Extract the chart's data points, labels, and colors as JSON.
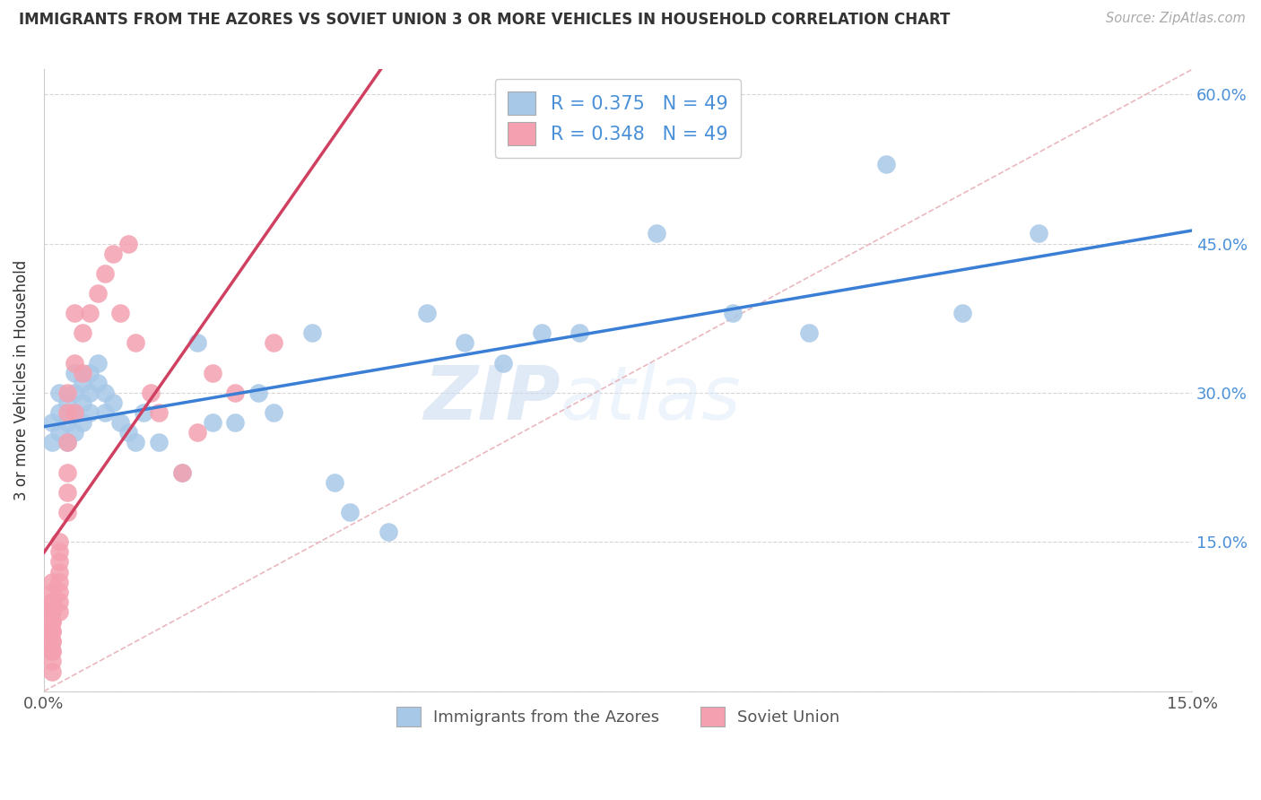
{
  "title": "IMMIGRANTS FROM THE AZORES VS SOVIET UNION 3 OR MORE VEHICLES IN HOUSEHOLD CORRELATION CHART",
  "source": "Source: ZipAtlas.com",
  "ylabel": "3 or more Vehicles in Household",
  "xmin": 0.0,
  "xmax": 0.15,
  "ymin": 0.0,
  "ymax": 0.625,
  "xticks": [
    0.0,
    0.03,
    0.06,
    0.09,
    0.12,
    0.15
  ],
  "xtick_labels": [
    "0.0%",
    "",
    "",
    "",
    "",
    "15.0%"
  ],
  "yticks": [
    0.0,
    0.15,
    0.3,
    0.45,
    0.6
  ],
  "ytick_labels_right": [
    "",
    "15.0%",
    "30.0%",
    "45.0%",
    "60.0%"
  ],
  "azores_R": 0.375,
  "azores_N": 49,
  "soviet_R": 0.348,
  "soviet_N": 49,
  "azores_color": "#a8c8e8",
  "soviet_color": "#f4a0b0",
  "azores_line_color": "#3a7fd5",
  "soviet_line_color": "#d04060",
  "diag_line_color": "#e8b0b8",
  "legend_label_azores": "Immigrants from the Azores",
  "legend_label_soviet": "Soviet Union",
  "watermark_zip": "ZIP",
  "watermark_atlas": "atlas",
  "azores_x": [
    0.001,
    0.001,
    0.002,
    0.002,
    0.002,
    0.003,
    0.003,
    0.003,
    0.004,
    0.004,
    0.004,
    0.004,
    0.005,
    0.005,
    0.005,
    0.006,
    0.006,
    0.006,
    0.007,
    0.007,
    0.008,
    0.008,
    0.009,
    0.01,
    0.011,
    0.012,
    0.013,
    0.015,
    0.018,
    0.02,
    0.022,
    0.025,
    0.028,
    0.03,
    0.035,
    0.038,
    0.04,
    0.045,
    0.05,
    0.055,
    0.06,
    0.065,
    0.07,
    0.08,
    0.09,
    0.1,
    0.11,
    0.12,
    0.13
  ],
  "azores_y": [
    0.27,
    0.25,
    0.28,
    0.26,
    0.3,
    0.29,
    0.27,
    0.25,
    0.3,
    0.28,
    0.26,
    0.32,
    0.29,
    0.27,
    0.31,
    0.3,
    0.28,
    0.32,
    0.31,
    0.33,
    0.28,
    0.3,
    0.29,
    0.27,
    0.26,
    0.25,
    0.28,
    0.25,
    0.22,
    0.35,
    0.27,
    0.27,
    0.3,
    0.28,
    0.36,
    0.21,
    0.18,
    0.16,
    0.38,
    0.35,
    0.33,
    0.36,
    0.36,
    0.46,
    0.38,
    0.36,
    0.53,
    0.38,
    0.46
  ],
  "soviet_x": [
    0.001,
    0.001,
    0.001,
    0.001,
    0.001,
    0.001,
    0.001,
    0.001,
    0.001,
    0.001,
    0.001,
    0.001,
    0.001,
    0.001,
    0.001,
    0.001,
    0.002,
    0.002,
    0.002,
    0.002,
    0.002,
    0.002,
    0.002,
    0.002,
    0.003,
    0.003,
    0.003,
    0.003,
    0.003,
    0.003,
    0.004,
    0.004,
    0.004,
    0.005,
    0.005,
    0.006,
    0.007,
    0.008,
    0.009,
    0.01,
    0.011,
    0.012,
    0.014,
    0.015,
    0.018,
    0.02,
    0.022,
    0.025,
    0.03
  ],
  "soviet_y": [
    0.02,
    0.04,
    0.05,
    0.06,
    0.07,
    0.08,
    0.09,
    0.1,
    0.11,
    0.03,
    0.06,
    0.08,
    0.04,
    0.07,
    0.05,
    0.09,
    0.1,
    0.12,
    0.13,
    0.08,
    0.14,
    0.11,
    0.09,
    0.15,
    0.2,
    0.22,
    0.25,
    0.28,
    0.18,
    0.3,
    0.28,
    0.33,
    0.38,
    0.32,
    0.36,
    0.38,
    0.4,
    0.42,
    0.44,
    0.38,
    0.45,
    0.35,
    0.3,
    0.28,
    0.22,
    0.26,
    0.32,
    0.3,
    0.35
  ]
}
